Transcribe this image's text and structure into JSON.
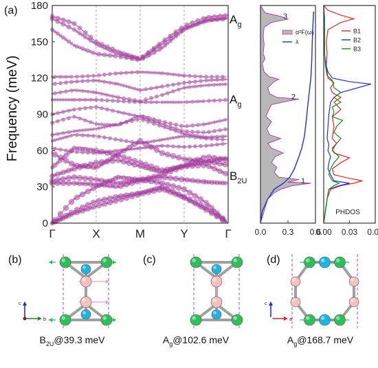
{
  "colors": {
    "phonon": "#a53a9f",
    "phonon_line": "#9a9a9a",
    "a2f_fill": "#b8b8b8",
    "a2f_edge": "#a53a9f",
    "lambda": "#1f2fd6",
    "B1": "#e8222a",
    "B2": "#1f2fd6",
    "B3": "#1c8a1c",
    "atom_green": "#2fbf5a",
    "atom_cyan": "#1fb3e0",
    "atom_pink": "#f4c0c0",
    "bond": "#a0a0a0",
    "cell": "#9c4fd8"
  },
  "panel_a_label": "(a)",
  "ylabel": "Frequency (meV)",
  "chart_data": [
    {
      "type": "line",
      "name": "phonon dispersion",
      "xlabel": "",
      "ylabel": "Frequency (meV)",
      "ylim": [
        0,
        180
      ],
      "yticks": [
        0,
        30,
        60,
        90,
        120,
        150,
        180
      ],
      "kpoints": [
        "Γ",
        "X",
        "M",
        "Y",
        "Γ"
      ],
      "mode_labels": [
        {
          "text": "A",
          "sub": "g",
          "y": 168.7
        },
        {
          "text": "A",
          "sub": "g",
          "y": 102.6
        },
        {
          "text": "B",
          "sub": "2U",
          "y": 39.3
        }
      ],
      "bands": [
        [
          0,
          20,
          30,
          38,
          36,
          33,
          28,
          17,
          0
        ],
        [
          0,
          10,
          18,
          22,
          25,
          30,
          22,
          13,
          0
        ],
        [
          0,
          8,
          14,
          19,
          24,
          28,
          21,
          11,
          0
        ],
        [
          33,
          33,
          32,
          30,
          35,
          38,
          36,
          34,
          33
        ],
        [
          35,
          38,
          36,
          33,
          36,
          40,
          47,
          48,
          40
        ],
        [
          39,
          45,
          50,
          52,
          47,
          42,
          48,
          55,
          52
        ],
        [
          46,
          62,
          60,
          56,
          50,
          44,
          47,
          51,
          48
        ],
        [
          58,
          48,
          46,
          57,
          68,
          58,
          53,
          51,
          54
        ],
        [
          62,
          59,
          58,
          60,
          62,
          64,
          63,
          64,
          66
        ],
        [
          68,
          73,
          72,
          69,
          66,
          69,
          72,
          70,
          69
        ],
        [
          73,
          76,
          78,
          82,
          86,
          80,
          74,
          71,
          72
        ],
        [
          83,
          88,
          82,
          81,
          89,
          84,
          80,
          82,
          86
        ],
        [
          90,
          94,
          96,
          92,
          88,
          82,
          76,
          75,
          78
        ],
        [
          102,
          102,
          102,
          101,
          100,
          100,
          100,
          101,
          102
        ],
        [
          107,
          110,
          108,
          104,
          101,
          106,
          112,
          114,
          115
        ],
        [
          115,
          117,
          118,
          115,
          110,
          113,
          116,
          118,
          119
        ],
        [
          121,
          121,
          122,
          124,
          125,
          124,
          122,
          121,
          121
        ],
        [
          160,
          147,
          140,
          138,
          135,
          145,
          160,
          168,
          169
        ],
        [
          169,
          160,
          148,
          140,
          136,
          148,
          161,
          167,
          170
        ],
        [
          171,
          165,
          150,
          142,
          136,
          150,
          163,
          170,
          172
        ]
      ]
    },
    {
      "type": "area",
      "name": "Eliashberg spectral function",
      "legend": [
        "α²F(ω)",
        "λ"
      ],
      "xticks": [
        "0.0",
        "0.3",
        "0.6"
      ],
      "xlim": [
        0,
        0.6
      ],
      "ylim": [
        0,
        180
      ],
      "peak_labels": [
        {
          "text": "3",
          "y": 168.7
        },
        {
          "text": "2",
          "y": 102.6
        },
        {
          "text": "1",
          "y": 33
        }
      ],
      "a2f": [
        [
          0,
          0
        ],
        [
          10,
          0.04
        ],
        [
          20,
          0.08
        ],
        [
          25,
          0.15
        ],
        [
          28,
          0.22
        ],
        [
          31,
          0.35
        ],
        [
          33,
          0.55
        ],
        [
          34,
          0.3
        ],
        [
          36,
          0.42
        ],
        [
          38,
          0.2
        ],
        [
          42,
          0.15
        ],
        [
          46,
          0.18
        ],
        [
          50,
          0.12
        ],
        [
          55,
          0.16
        ],
        [
          58,
          0.25
        ],
        [
          62,
          0.12
        ],
        [
          66,
          0.08
        ],
        [
          70,
          0.22
        ],
        [
          73,
          0.1
        ],
        [
          78,
          0.07
        ],
        [
          84,
          0.12
        ],
        [
          88,
          0.06
        ],
        [
          92,
          0.08
        ],
        [
          98,
          0.12
        ],
        [
          101,
          0.3
        ],
        [
          102.6,
          0.42
        ],
        [
          104,
          0.18
        ],
        [
          107,
          0.1
        ],
        [
          112,
          0.08
        ],
        [
          117,
          0.15
        ],
        [
          119,
          0.2
        ],
        [
          121,
          0.1
        ],
        [
          125,
          0.04
        ],
        [
          132,
          0.02
        ],
        [
          136,
          0.05
        ],
        [
          140,
          0.03
        ],
        [
          148,
          0.04
        ],
        [
          155,
          0.03
        ],
        [
          162,
          0.04
        ],
        [
          166,
          0.12
        ],
        [
          168.7,
          0.3
        ],
        [
          171,
          0.22
        ],
        [
          174,
          0.05
        ],
        [
          180,
          0
        ]
      ],
      "lambda": [
        [
          0,
          0.0
        ],
        [
          10,
          0.02
        ],
        [
          20,
          0.08
        ],
        [
          28,
          0.15
        ],
        [
          33,
          0.25
        ],
        [
          38,
          0.32
        ],
        [
          45,
          0.37
        ],
        [
          55,
          0.42
        ],
        [
          62,
          0.45
        ],
        [
          72,
          0.48
        ],
        [
          85,
          0.5
        ],
        [
          100,
          0.52
        ],
        [
          110,
          0.535
        ],
        [
          120,
          0.55
        ],
        [
          135,
          0.56
        ],
        [
          150,
          0.565
        ],
        [
          168,
          0.575
        ],
        [
          175,
          0.58
        ]
      ]
    },
    {
      "type": "line",
      "name": "PHDOS",
      "label": "PHDOS",
      "xticks": [
        "0.00",
        "0.03",
        "0.06"
      ],
      "xlim": [
        0,
        0.06
      ],
      "ylim": [
        0,
        180
      ],
      "series": [
        {
          "name": "B1",
          "points": [
            [
              0,
              0
            ],
            [
              10,
              0.002
            ],
            [
              20,
              0.004
            ],
            [
              28,
              0.008
            ],
            [
              31,
              0.02
            ],
            [
              33,
              0.035
            ],
            [
              35,
              0.045
            ],
            [
              37,
              0.03
            ],
            [
              40,
              0.012
            ],
            [
              45,
              0.01
            ],
            [
              50,
              0.02
            ],
            [
              54,
              0.03
            ],
            [
              58,
              0.012
            ],
            [
              62,
              0.01
            ],
            [
              66,
              0.015
            ],
            [
              70,
              0.01
            ],
            [
              80,
              0.012
            ],
            [
              88,
              0.01
            ],
            [
              94,
              0.02
            ],
            [
              100,
              0.012
            ],
            [
              104,
              0.02
            ],
            [
              108,
              0.01
            ],
            [
              112,
              0.008
            ],
            [
              116,
              0.012
            ],
            [
              120,
              0.005
            ],
            [
              130,
              0.003
            ],
            [
              140,
              0.004
            ],
            [
              150,
              0.003
            ],
            [
              160,
              0.005
            ],
            [
              166,
              0.02
            ],
            [
              169,
              0.035
            ],
            [
              172,
              0.02
            ],
            [
              176,
              0.005
            ],
            [
              180,
              0
            ]
          ]
        },
        {
          "name": "B2",
          "points": [
            [
              0,
              0
            ],
            [
              10,
              0.002
            ],
            [
              20,
              0.004
            ],
            [
              28,
              0.006
            ],
            [
              31,
              0.018
            ],
            [
              33,
              0.03
            ],
            [
              35,
              0.012
            ],
            [
              40,
              0.008
            ],
            [
              45,
              0.005
            ],
            [
              50,
              0.006
            ],
            [
              55,
              0.008
            ],
            [
              60,
              0.005
            ],
            [
              65,
              0.006
            ],
            [
              70,
              0.004
            ],
            [
              80,
              0.005
            ],
            [
              90,
              0.006
            ],
            [
              100,
              0.008
            ],
            [
              104,
              0.012
            ],
            [
              108,
              0.02
            ],
            [
              112,
              0.04
            ],
            [
              115,
              0.055
            ],
            [
              117,
              0.03
            ],
            [
              120,
              0.01
            ],
            [
              125,
              0.005
            ],
            [
              130,
              0.003
            ],
            [
              140,
              0.001
            ],
            [
              150,
              0.001
            ],
            [
              160,
              0.001
            ],
            [
              170,
              0.001
            ],
            [
              180,
              0
            ]
          ]
        },
        {
          "name": "B3",
          "points": [
            [
              0,
              0
            ],
            [
              10,
              0.002
            ],
            [
              20,
              0.004
            ],
            [
              28,
              0.006
            ],
            [
              31,
              0.012
            ],
            [
              33,
              0.018
            ],
            [
              35,
              0.01
            ],
            [
              40,
              0.006
            ],
            [
              45,
              0.008
            ],
            [
              50,
              0.012
            ],
            [
              55,
              0.018
            ],
            [
              60,
              0.01
            ],
            [
              65,
              0.014
            ],
            [
              70,
              0.02
            ],
            [
              75,
              0.012
            ],
            [
              80,
              0.015
            ],
            [
              85,
              0.022
            ],
            [
              88,
              0.01
            ],
            [
              92,
              0.012
            ],
            [
              96,
              0.01
            ],
            [
              100,
              0.02
            ],
            [
              104,
              0.012
            ],
            [
              108,
              0.02
            ],
            [
              112,
              0.012
            ],
            [
              118,
              0.01
            ],
            [
              122,
              0.004
            ],
            [
              130,
              0.002
            ],
            [
              140,
              0.001
            ],
            [
              160,
              0.001
            ],
            [
              180,
              0
            ]
          ]
        }
      ]
    }
  ],
  "structures": [
    {
      "label": "(b)",
      "caption_main": "B",
      "caption_sub": "2U",
      "caption_rest": "@39.3 meV",
      "axes": [
        "c",
        "b"
      ]
    },
    {
      "label": "(c)",
      "caption_main": "A",
      "caption_sub": "g",
      "caption_rest": "@102.6 meV",
      "axes": [
        "c",
        "b"
      ]
    },
    {
      "label": "(d)",
      "caption_main": "A",
      "caption_sub": "g",
      "caption_rest": "@168.7 meV",
      "axes": [
        "c",
        "a"
      ]
    }
  ]
}
